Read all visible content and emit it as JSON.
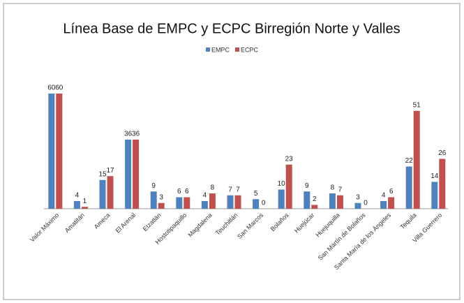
{
  "chart_data": {
    "type": "bar",
    "title": "Línea Base de EMPC y ECPC Birregión Norte y Valles",
    "categories": [
      "Valor Máximo",
      "Amatitán",
      "Ameca",
      "El Arenal",
      "Etzatlán",
      "Hostotipaquillo",
      "Magdalena",
      "Teuchitlán",
      "San Marcos",
      "Bolaños",
      "Huejúcar",
      "Huejuquilla",
      "San Martín de Bolaños",
      "Santa María de los Ángeles",
      "Tequila",
      "Villa Guerrero"
    ],
    "series": [
      {
        "name": "EMPC",
        "color": "#4f81bd",
        "values": [
          60,
          4,
          15,
          36,
          9,
          6,
          4,
          7,
          5,
          10,
          9,
          8,
          3,
          4,
          22,
          14
        ]
      },
      {
        "name": "ECPC",
        "color": "#c0504d",
        "values": [
          60,
          1,
          17,
          36,
          3,
          6,
          8,
          7,
          0,
          23,
          2,
          7,
          0,
          6,
          51,
          26
        ]
      }
    ],
    "legend": "top"
  }
}
